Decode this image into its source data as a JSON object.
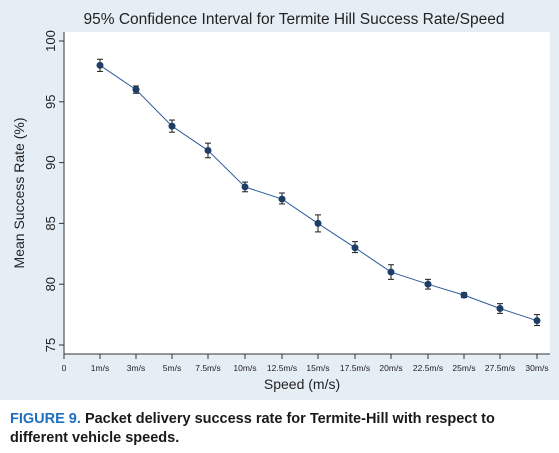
{
  "chart_data": {
    "type": "line",
    "title": "95% Confidence Interval for Termite Hill Success Rate/Speed",
    "xlabel": "Speed (m/s)",
    "ylabel": "Mean Success Rate (%)",
    "categories": [
      "0",
      "1m/s",
      "3m/s",
      "5m/s",
      "7.5m/s",
      "10m/s",
      "12.5m/s",
      "15m/s",
      "17.5m/s",
      "20m/s",
      "22.5m/s",
      "25m/s",
      "27.5m/s",
      "30m/s"
    ],
    "yticks": [
      "75",
      "80",
      "85",
      "90",
      "95",
      "100"
    ],
    "ylim": [
      75,
      100
    ],
    "series": [
      {
        "points": [
          {
            "x": "1m/s",
            "y": 98.0,
            "lo": 97.5,
            "hi": 98.5
          },
          {
            "x": "3m/s",
            "y": 96.0,
            "lo": 95.7,
            "hi": 96.3
          },
          {
            "x": "5m/s",
            "y": 93.0,
            "lo": 92.5,
            "hi": 93.5
          },
          {
            "x": "7.5m/s",
            "y": 91.0,
            "lo": 90.4,
            "hi": 91.6
          },
          {
            "x": "10m/s",
            "y": 88.0,
            "lo": 87.6,
            "hi": 88.4
          },
          {
            "x": "12.5m/s",
            "y": 87.0,
            "lo": 86.6,
            "hi": 87.5
          },
          {
            "x": "15m/s",
            "y": 85.0,
            "lo": 84.3,
            "hi": 85.7
          },
          {
            "x": "17.5m/s",
            "y": 83.0,
            "lo": 82.6,
            "hi": 83.5
          },
          {
            "x": "20m/s",
            "y": 81.0,
            "lo": 80.4,
            "hi": 81.6
          },
          {
            "x": "22.5m/s",
            "y": 80.0,
            "lo": 79.6,
            "hi": 80.4
          },
          {
            "x": "25m/s",
            "y": 79.1,
            "lo": 78.9,
            "hi": 79.3
          },
          {
            "x": "27.5m/s",
            "y": 78.0,
            "lo": 77.6,
            "hi": 78.4
          },
          {
            "x": "30m/s",
            "y": 77.0,
            "lo": 76.6,
            "hi": 77.5
          }
        ]
      }
    ],
    "grid": false,
    "colors": {
      "line": "#2b5d9a",
      "marker": "#1f3e66",
      "panel": "#e6eef5",
      "plot": "#ffffff"
    }
  },
  "caption": {
    "label": "FIGURE 9.",
    "text": "Packet delivery success rate for Termite-Hill with respect to different vehicle speeds."
  }
}
